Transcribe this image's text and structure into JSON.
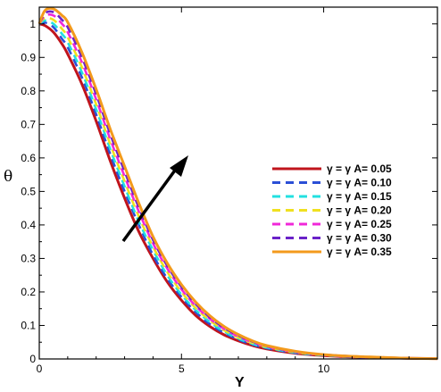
{
  "chart_data": {
    "type": "line",
    "title": "",
    "xlabel": "Y",
    "ylabel": "θ",
    "xlim": [
      0,
      14
    ],
    "ylim": [
      0,
      1.05
    ],
    "x_ticks": [
      "0",
      "5",
      "10"
    ],
    "y_ticks": [
      "0",
      "0.1",
      "0.2",
      "0.3",
      "0.4",
      "0.5",
      "0.6",
      "0.7",
      "0.8",
      "0.9",
      "1"
    ],
    "grid": false,
    "legend_position": "right",
    "annotation": "arrow indicating increasing γ = γ A",
    "x": [
      0,
      0.2,
      0.5,
      0.8,
      1.0,
      1.5,
      2.0,
      2.5,
      3.0,
      3.5,
      4.0,
      4.5,
      5.0,
      5.5,
      6.0,
      6.5,
      7.0,
      7.5,
      8.0,
      9.0,
      10.0,
      11.0,
      12.0,
      13.0,
      14.0
    ],
    "series": [
      {
        "name": "γ = γ A= 0.05",
        "color": "#c0141c",
        "dash": "solid",
        "values": [
          1.0,
          0.995,
          0.975,
          0.94,
          0.91,
          0.82,
          0.71,
          0.59,
          0.48,
          0.38,
          0.3,
          0.23,
          0.175,
          0.13,
          0.097,
          0.072,
          0.054,
          0.04,
          0.03,
          0.017,
          0.01,
          0.006,
          0.004,
          0.002,
          0.001
        ]
      },
      {
        "name": "γ = γ A= 0.10",
        "color": "#2b4fd6",
        "dash": "dashed",
        "values": [
          1.0,
          1.004,
          0.99,
          0.955,
          0.93,
          0.84,
          0.73,
          0.61,
          0.5,
          0.4,
          0.31,
          0.24,
          0.185,
          0.14,
          0.104,
          0.078,
          0.058,
          0.043,
          0.032,
          0.018,
          0.011,
          0.006,
          0.004,
          0.002,
          0.001
        ]
      },
      {
        "name": "γ = γ A= 0.15",
        "color": "#22e0e0",
        "dash": "dashed",
        "values": [
          1.0,
          1.01,
          1.0,
          0.97,
          0.945,
          0.855,
          0.745,
          0.625,
          0.515,
          0.41,
          0.325,
          0.25,
          0.192,
          0.146,
          0.11,
          0.082,
          0.061,
          0.045,
          0.034,
          0.019,
          0.011,
          0.007,
          0.004,
          0.002,
          0.001
        ]
      },
      {
        "name": "γ = γ A= 0.20",
        "color": "#f0e020",
        "dash": "dashed",
        "values": [
          1.0,
          1.018,
          1.012,
          0.985,
          0.96,
          0.87,
          0.76,
          0.64,
          0.53,
          0.425,
          0.335,
          0.26,
          0.2,
          0.152,
          0.115,
          0.086,
          0.064,
          0.048,
          0.036,
          0.02,
          0.012,
          0.007,
          0.004,
          0.002,
          0.001
        ]
      },
      {
        "name": "γ = γ A= 0.25",
        "color": "#f028d8",
        "dash": "dashed",
        "values": [
          1.0,
          1.025,
          1.025,
          1.0,
          0.975,
          0.885,
          0.775,
          0.655,
          0.545,
          0.44,
          0.345,
          0.27,
          0.208,
          0.158,
          0.12,
          0.09,
          0.067,
          0.05,
          0.037,
          0.021,
          0.012,
          0.007,
          0.004,
          0.002,
          0.001
        ]
      },
      {
        "name": "γ = γ A= 0.30",
        "color": "#6a22c8",
        "dash": "dashed",
        "values": [
          1.0,
          1.032,
          1.035,
          1.012,
          0.99,
          0.9,
          0.79,
          0.67,
          0.56,
          0.452,
          0.355,
          0.278,
          0.215,
          0.164,
          0.124,
          0.093,
          0.07,
          0.052,
          0.039,
          0.022,
          0.013,
          0.008,
          0.005,
          0.002,
          0.001
        ]
      },
      {
        "name": "γ = γ A= 0.35",
        "color": "#f39a1c",
        "dash": "solid",
        "values": [
          1.0,
          1.04,
          1.045,
          1.025,
          1.005,
          0.915,
          0.805,
          0.685,
          0.575,
          0.465,
          0.365,
          0.286,
          0.222,
          0.17,
          0.129,
          0.097,
          0.073,
          0.054,
          0.04,
          0.023,
          0.013,
          0.008,
          0.005,
          0.002,
          0.001
        ]
      }
    ]
  }
}
